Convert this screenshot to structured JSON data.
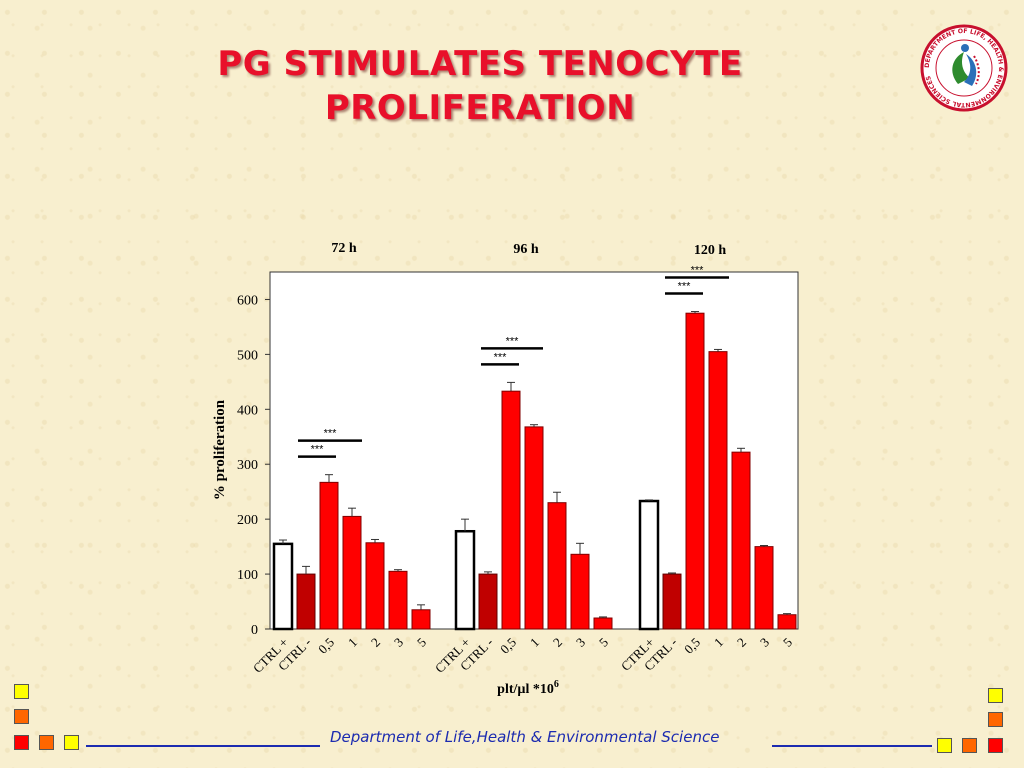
{
  "slide": {
    "title_line1": "PG STIMULATES TENOCYTE",
    "title_line2": "PROLIFERATION",
    "footer": "Department of Life,Health & Environmental Science",
    "logo_text": "DEPARTMENT OF LIFE, HEALTH & ENVIRONMENTAL SCIENCES",
    "accent": "#e8102a",
    "footer_color": "#1c2bb0"
  },
  "decor": {
    "left_squares": [
      "#ffff00",
      "#ff6600",
      "#ff0000",
      "#ff6600",
      "#ffff00"
    ],
    "right_squares": [
      "#ffff00",
      "#ff6600",
      "#ff0000",
      "#ffff00",
      "#ff6600",
      "#ff0000"
    ]
  },
  "chart_data": {
    "type": "bar",
    "ylabel": "% proliferation",
    "xlabel": "plt/µl *10",
    "xlabel_superscript": "6",
    "ylim": [
      0,
      650
    ],
    "yticks": [
      0,
      100,
      200,
      300,
      400,
      500,
      600
    ],
    "grid": false,
    "groups": [
      {
        "name": "72 h",
        "categories": [
          "CTRL +",
          "CTRL -",
          "0,5",
          "1",
          "2",
          "3",
          "5"
        ],
        "values": [
          155,
          100,
          267,
          205,
          157,
          105,
          35
        ],
        "errors": [
          7,
          14,
          14,
          15,
          6,
          3,
          9
        ],
        "significance": [
          {
            "label": "***"
          },
          {
            "label": "***"
          }
        ]
      },
      {
        "name": "96 h",
        "categories": [
          "CTRL +",
          "CTRL -",
          "0,5",
          "1",
          "2",
          "3",
          "5"
        ],
        "values": [
          178,
          100,
          433,
          368,
          230,
          136,
          20
        ],
        "errors": [
          22,
          4,
          16,
          4,
          19,
          20,
          2
        ],
        "significance": [
          {
            "label": "***"
          },
          {
            "label": "***"
          }
        ]
      },
      {
        "name": "120 h",
        "categories": [
          "CTRL+",
          "CTRL -",
          "0,5",
          "1",
          "2",
          "3",
          "5"
        ],
        "values": [
          233,
          100,
          575,
          505,
          322,
          150,
          26
        ],
        "errors": [
          2,
          2,
          3,
          4,
          7,
          2,
          2
        ],
        "significance": [
          {
            "label": "***"
          },
          {
            "label": "***"
          }
        ]
      }
    ],
    "colors": {
      "ctrl_pos": "#ffffff",
      "ctrl_neg": "#c00000",
      "treatment": "#ff0000"
    }
  }
}
